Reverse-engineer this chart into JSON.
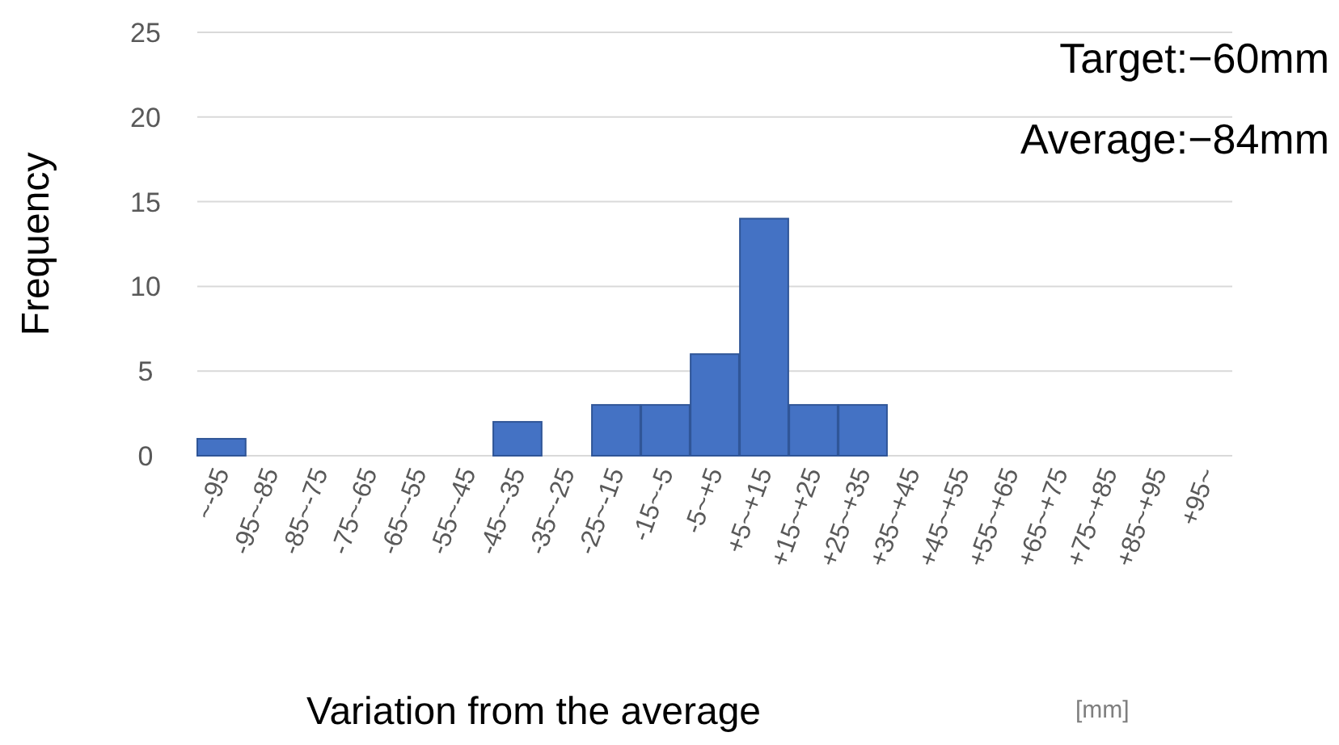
{
  "chart_data": {
    "type": "bar",
    "ylabel": "Frequency",
    "xlabel": "Variation from the average",
    "categories": [
      "~-95",
      "-95~-85",
      "-85~-75",
      "-75~-65",
      "-65~-55",
      "-55~-45",
      "-45~-35",
      "-35~-25",
      "-25~-15",
      "-15~-5",
      "-5~+5",
      "+5~+15",
      "+15~+25",
      "+25~+35",
      "+35~+45",
      "+45~+55",
      "+55~+65",
      "+65~+75",
      "+75~+85",
      "+85~+95",
      "+95~"
    ],
    "values": [
      1,
      0,
      0,
      0,
      0,
      0,
      2,
      0,
      3,
      3,
      6,
      14,
      3,
      3,
      0,
      0,
      0,
      0,
      0,
      0,
      0
    ],
    "color": "#4472c4",
    "ylim": [
      0,
      25
    ],
    "yticks": [
      0,
      5,
      10,
      15,
      20,
      25
    ],
    "grid": "y",
    "annotations": [
      "Target:−60mm",
      "Average:−84mm",
      "[mm]"
    ]
  }
}
